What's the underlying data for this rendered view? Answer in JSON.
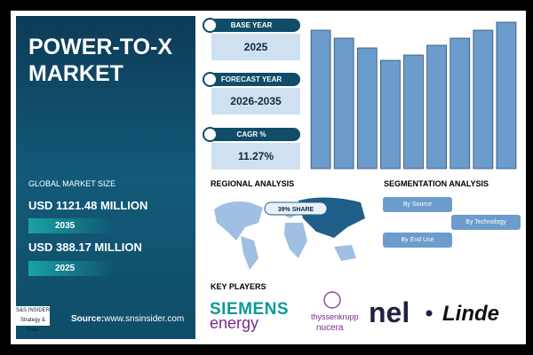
{
  "header": {
    "title": "POWER-TO-X MARKET",
    "market_size_label": "GLOBAL MARKET SIZE",
    "forecast_value": "USD 1121.48 MILLION",
    "forecast_year": "2035",
    "base_value": "USD 388.17 MILLION",
    "base_year": "2025",
    "source_label": "Source:",
    "source_url": "www.snsinsider.com",
    "logo_text": "S&S INSIDER Strategy & Stats"
  },
  "cards": [
    {
      "label": "BASE YEAR",
      "value": "2025"
    },
    {
      "label": "FORECAST YEAR",
      "value": "2026-2035"
    },
    {
      "label": "CAGR %",
      "value": "11.27%"
    }
  ],
  "chart_data": {
    "type": "bar",
    "categories": [
      null,
      null,
      null,
      null,
      null,
      null,
      null,
      null,
      null
    ],
    "values": [
      156,
      147,
      136,
      122,
      128,
      139,
      147,
      156,
      165
    ],
    "color": "#6c9ccc",
    "ylim": [
      0,
      170
    ]
  },
  "regional": {
    "title": "REGIONAL ANALYSIS",
    "share": "39% SHARE"
  },
  "segmentation": {
    "title": "SEGMENTATION ANALYSIS",
    "items": [
      "By Source",
      "By Technology",
      "By End Use"
    ]
  },
  "players": {
    "title": "KEY PLAYERS",
    "names": [
      "SIEMENS",
      "energy",
      "thyssenkrupp",
      "nucera",
      "nel",
      "Linde"
    ]
  }
}
